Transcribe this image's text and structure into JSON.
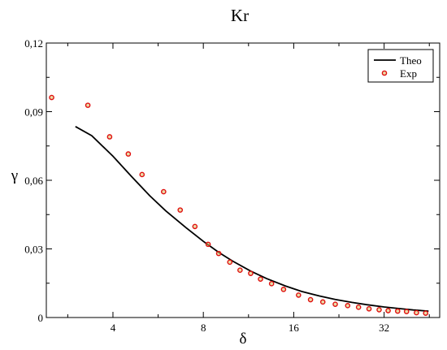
{
  "chart_data": {
    "type": "scatter",
    "title": "Kr",
    "xlabel": "δ",
    "ylabel": "γ",
    "x_scale": "log2",
    "xlim": [
      2.4,
      49
    ],
    "ylim": [
      0,
      0.12
    ],
    "x_ticks": [
      4,
      8,
      16,
      32
    ],
    "x_tick_labels": [
      "4",
      "8",
      "16",
      "32"
    ],
    "y_ticks": [
      0,
      0.03,
      0.06,
      0.09,
      0.12
    ],
    "y_tick_labels": [
      "0",
      "0,03",
      "0,06",
      "0,09",
      "0,12"
    ],
    "grid": false,
    "legend_position": "top-right",
    "series": [
      {
        "name": "Theo",
        "kind": "line",
        "color": "#000000",
        "x": [
          3.0,
          3.4,
          4.0,
          4.6,
          5.3,
          6.0,
          7.0,
          8.0,
          9.0,
          10.0,
          11.5,
          13.0,
          15.0,
          17.0,
          19.5,
          22.0,
          25.0,
          28.0,
          32.0,
          36.0,
          40.0,
          45.0
        ],
        "y": [
          0.0835,
          0.0795,
          0.0705,
          0.0618,
          0.0533,
          0.0466,
          0.0393,
          0.0333,
          0.0285,
          0.0247,
          0.0203,
          0.017,
          0.0138,
          0.0114,
          0.0094,
          0.0079,
          0.0066,
          0.0056,
          0.0046,
          0.0039,
          0.0033,
          0.0028
        ]
      },
      {
        "name": "Exp",
        "kind": "scatter",
        "color": "#e01010",
        "x": [
          2.5,
          3.3,
          3.9,
          4.5,
          5.0,
          5.9,
          6.7,
          7.5,
          8.3,
          9.0,
          9.8,
          10.6,
          11.5,
          12.4,
          13.5,
          14.8,
          16.6,
          18.2,
          20.0,
          22.0,
          24.2,
          26.3,
          28.5,
          30.8,
          33.0,
          35.5,
          38.0,
          41.0,
          44.0
        ],
        "y": [
          0.0962,
          0.0928,
          0.079,
          0.0715,
          0.0625,
          0.055,
          0.047,
          0.0398,
          0.032,
          0.028,
          0.0242,
          0.0207,
          0.0193,
          0.0168,
          0.0148,
          0.0123,
          0.0098,
          0.0078,
          0.0068,
          0.0058,
          0.0052,
          0.0045,
          0.0038,
          0.0034,
          0.003,
          0.0028,
          0.0026,
          0.0021,
          0.0019
        ]
      }
    ]
  }
}
